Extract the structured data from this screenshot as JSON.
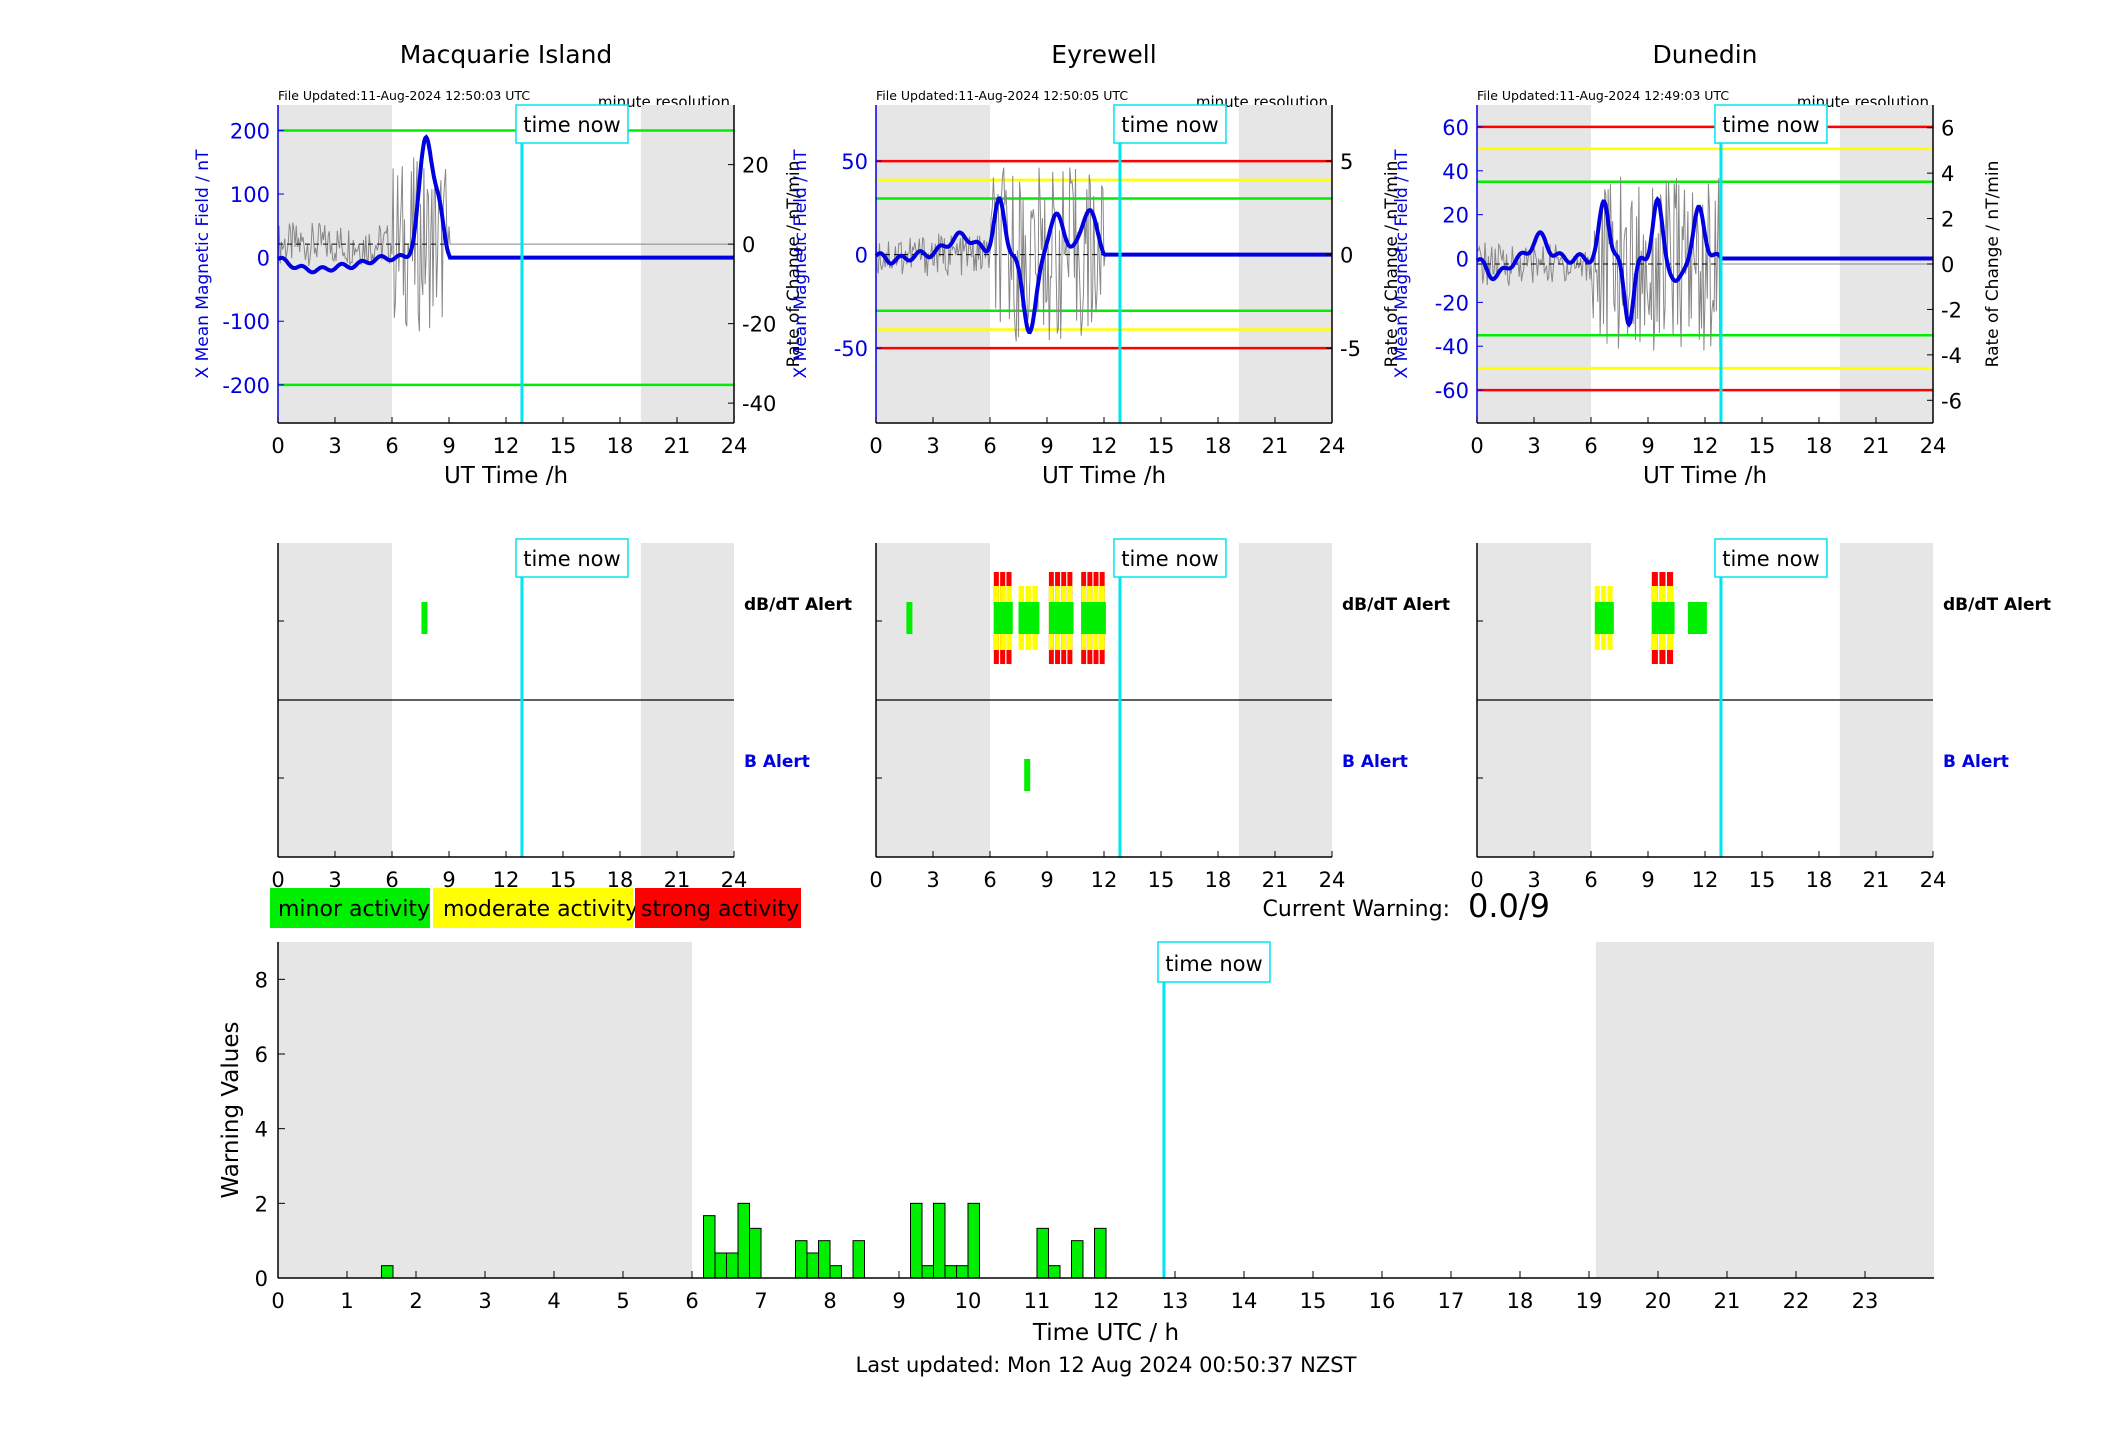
{
  "colors": {
    "magnetic_field": "#0000e0",
    "rate_of_change": "#888888",
    "minor": "#00ee00",
    "moderate": "#ffff00",
    "strong": "#ff0000",
    "night_shade": "#e6e6e6",
    "time_now": "#00e5ee"
  },
  "time_now_label": "time now",
  "time_now_hour": 12.84,
  "night_shading_hours": [
    [
      0,
      6
    ],
    [
      19.1,
      24
    ]
  ],
  "common": {
    "x_label": "UT Time /h",
    "y_label_left": "X Mean Magnetic Field / nT",
    "y_label_right": "Rate of Change / nT/min",
    "resolution": "minute resolution",
    "x_ticks": [
      "0",
      "3",
      "6",
      "9",
      "12",
      "15",
      "18",
      "21",
      "24"
    ],
    "dbdt_alert_label": "dB/dT Alert",
    "b_alert_label": "B Alert"
  },
  "stations": [
    {
      "title": "Macquarie Island",
      "file_updated": "File Updated:11-Aug-2024 12:50:03 UTC",
      "left_ticks": [
        "200",
        "100",
        "0",
        "-100",
        "-200"
      ],
      "right_ticks": [
        "20",
        "0",
        "-20",
        "-40"
      ],
      "show_right_label": true,
      "dbdt_alerts": [
        {
          "start": 7.55,
          "end": 7.75,
          "level": "minor"
        }
      ],
      "b_alerts": []
    },
    {
      "title": "Eyrewell",
      "file_updated": "File Updated:11-Aug-2024 12:50:05 UTC",
      "left_ticks": [
        "50",
        "0",
        "-50"
      ],
      "right_ticks": [
        "5",
        "0",
        "-5"
      ],
      "show_right_label": true,
      "dbdt_alerts": [
        {
          "start": 1.6,
          "end": 1.8,
          "level": "minor"
        },
        {
          "start": 6.2,
          "end": 7.2,
          "level": "strong"
        },
        {
          "start": 7.5,
          "end": 8.6,
          "level": "moderate"
        },
        {
          "start": 9.1,
          "end": 10.4,
          "level": "strong"
        },
        {
          "start": 10.8,
          "end": 12.1,
          "level": "strong"
        }
      ],
      "b_alerts": [
        {
          "start": 7.8,
          "end": 8.05,
          "level": "minor"
        }
      ]
    },
    {
      "title": "Dunedin",
      "file_updated": "File Updated:11-Aug-2024 12:49:03 UTC",
      "left_ticks": [
        "60",
        "40",
        "20",
        "0",
        "-20",
        "-40",
        "-60"
      ],
      "right_ticks": [
        "6",
        "4",
        "2",
        "0",
        "-2",
        "-4",
        "-6"
      ],
      "show_right_label": true,
      "dbdt_alerts": [
        {
          "start": 6.2,
          "end": 7.2,
          "level": "moderate"
        },
        {
          "start": 9.2,
          "end": 10.4,
          "level": "strong"
        },
        {
          "start": 11.1,
          "end": 12.1,
          "level": "minor"
        }
      ],
      "b_alerts": []
    }
  ],
  "legend": {
    "minor": "minor activity",
    "moderate": "moderate activity",
    "strong": "strong activity"
  },
  "current_warning": {
    "label": "Current Warning:",
    "value": "0.0/9"
  },
  "chart_data": {
    "type": "bar",
    "x_label": "Time UTC / h",
    "y_label": "Warning Values",
    "x_ticks": [
      "0",
      "1",
      "2",
      "3",
      "4",
      "5",
      "6",
      "7",
      "8",
      "9",
      "10",
      "11",
      "12",
      "13",
      "14",
      "15",
      "16",
      "17",
      "18",
      "19",
      "20",
      "21",
      "22",
      "23"
    ],
    "y_ticks": [
      "0",
      "2",
      "4",
      "6",
      "8"
    ],
    "ylim": [
      0,
      9
    ],
    "xlim": [
      0,
      24
    ],
    "series": [
      {
        "x": [
          1.583,
          6.25,
          6.417,
          6.583,
          6.75,
          6.917,
          7.583,
          7.75,
          7.917,
          8.083,
          8.417,
          9.25,
          9.417,
          9.583,
          9.75,
          9.917,
          10.083,
          11.083,
          11.25,
          11.583,
          11.917
        ],
        "values": [
          0.33,
          1.67,
          0.67,
          0.67,
          2.0,
          1.33,
          1.0,
          0.67,
          1.0,
          0.33,
          1.0,
          2.0,
          0.33,
          2.0,
          0.33,
          0.33,
          2.0,
          1.33,
          0.33,
          1.0,
          1.33
        ]
      }
    ]
  },
  "footer": "Last updated: Mon 12 Aug 2024 00:50:37 NZST"
}
